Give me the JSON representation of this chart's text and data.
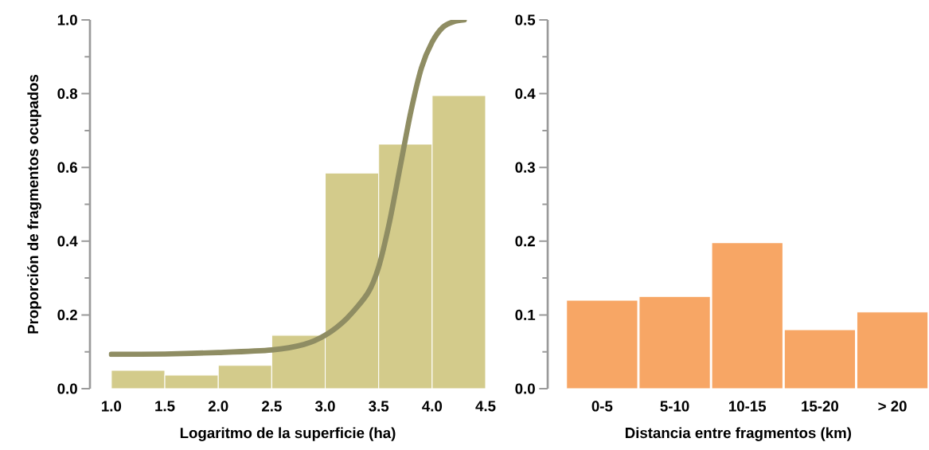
{
  "chart_data": [
    {
      "type": "histogram",
      "xlabel": "Logaritmo de la superficie (ha)",
      "ylabel": "Proporción de fragmentos ocupados",
      "bins": [
        1.0,
        1.5,
        2.0,
        2.5,
        3.0,
        3.5,
        4.0,
        4.5
      ],
      "values": [
        0.05,
        0.037,
        0.063,
        0.145,
        0.585,
        0.663,
        0.795
      ],
      "color": "#d3cb8b",
      "series": [
        {
          "type": "line",
          "color": "#8f8d63",
          "x": [
            1.0,
            1.5,
            2.0,
            2.5,
            2.8,
            3.0,
            3.2,
            3.4,
            3.5,
            3.6,
            3.7,
            3.8,
            3.9,
            4.0,
            4.1,
            4.2,
            4.3
          ],
          "values": [
            0.093,
            0.094,
            0.098,
            0.105,
            0.12,
            0.145,
            0.19,
            0.26,
            0.33,
            0.45,
            0.6,
            0.75,
            0.87,
            0.94,
            0.98,
            0.995,
            1.0
          ]
        }
      ],
      "xlim": [
        0.8,
        4.5
      ],
      "ylim": [
        0,
        1
      ],
      "xticks": [
        {
          "value": 1.0,
          "label": "1.0"
        },
        {
          "value": 1.5,
          "label": "1.5"
        },
        {
          "value": 2.0,
          "label": "2.0"
        },
        {
          "value": 2.5,
          "label": "2.5"
        },
        {
          "value": 3.0,
          "label": "3.0"
        },
        {
          "value": 3.5,
          "label": "3.5"
        },
        {
          "value": 4.0,
          "label": "4.0"
        },
        {
          "value": 4.5,
          "label": "4.5"
        }
      ],
      "yticks": [
        {
          "value": 0,
          "label": "0.0"
        },
        {
          "value": 0.2,
          "label": "0.2"
        },
        {
          "value": 0.4,
          "label": "0.4"
        },
        {
          "value": 0.6,
          "label": "0.6"
        },
        {
          "value": 0.8,
          "label": "0.8"
        },
        {
          "value": 1.0,
          "label": "1.0"
        }
      ],
      "grid": false
    },
    {
      "type": "bar",
      "xlabel": "Distancia entre fragmentos (km)",
      "categories": [
        "0-5",
        "5-10",
        "10-15",
        "15-20",
        "> 20"
      ],
      "values": [
        0.12,
        0.125,
        0.198,
        0.08,
        0.104
      ],
      "color": "#f7a665",
      "ylim": [
        0,
        0.5
      ],
      "yticks": [
        {
          "value": 0,
          "label": "0.0"
        },
        {
          "value": 0.1,
          "label": "0.1"
        },
        {
          "value": 0.2,
          "label": "0.2"
        },
        {
          "value": 0.3,
          "label": "0.3"
        },
        {
          "value": 0.4,
          "label": "0.4"
        },
        {
          "value": 0.5,
          "label": "0.5"
        }
      ],
      "grid": false
    }
  ]
}
